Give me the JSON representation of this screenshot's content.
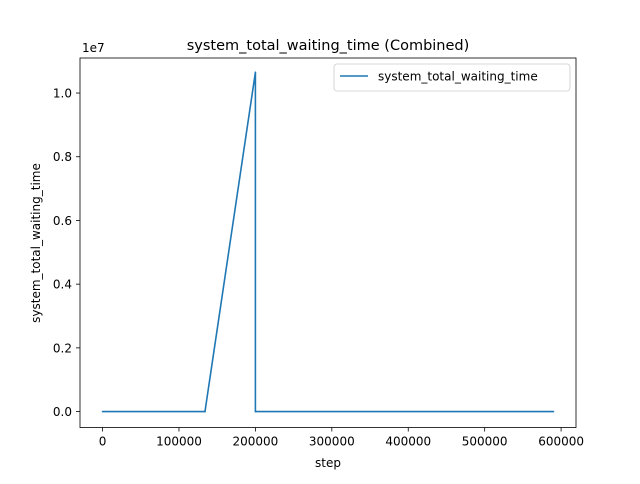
{
  "chart_data": {
    "type": "line",
    "title": "system_total_waiting_time (Combined)",
    "xlabel": "step",
    "ylabel": "system_total_waiting_time",
    "y_offset_label": "1e7",
    "xlim": [
      -29500,
      619500
    ],
    "ylim": [
      -0.05,
      1.11
    ],
    "x_ticks": [
      0,
      100000,
      200000,
      300000,
      400000,
      500000,
      600000
    ],
    "x_tick_labels": [
      "0",
      "100000",
      "200000",
      "300000",
      "400000",
      "500000",
      "600000"
    ],
    "y_ticks": [
      0.0,
      0.2,
      0.4,
      0.6,
      0.8,
      1.0
    ],
    "y_tick_labels": [
      "0.0",
      "0.2",
      "0.4",
      "0.6",
      "0.8",
      "1.0"
    ],
    "grid": false,
    "legend_position": "top-right",
    "series": [
      {
        "name": "system_total_waiting_time",
        "color": "#1f77b4",
        "x": [
          0,
          134000,
          200000,
          200000,
          590000
        ],
        "y": [
          0.0,
          0.0,
          1.065,
          0.0,
          0.0
        ]
      }
    ]
  }
}
